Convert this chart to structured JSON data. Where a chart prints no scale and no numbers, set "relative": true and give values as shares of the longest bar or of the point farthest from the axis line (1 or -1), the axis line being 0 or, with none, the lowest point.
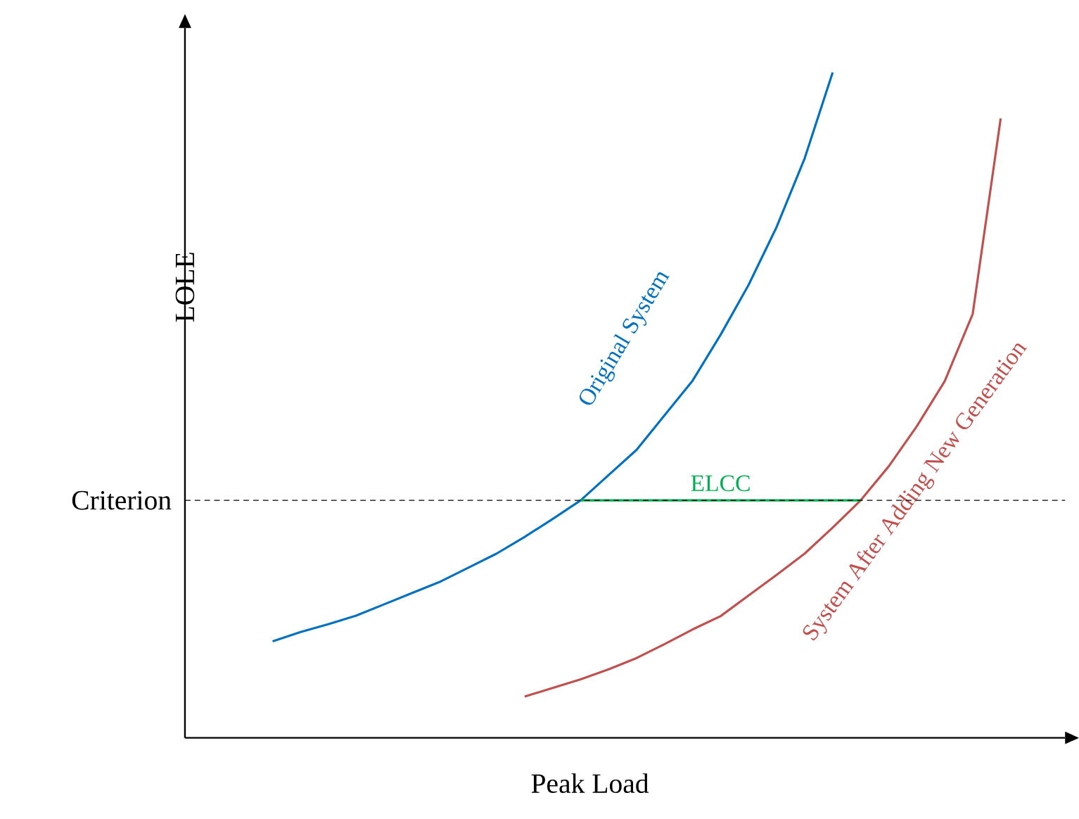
{
  "chart_data": {
    "type": "line",
    "relative": true,
    "xlabel": "Peak Load",
    "ylabel": "LOLE",
    "categories": [
      null,
      null,
      null,
      null,
      null,
      null,
      null,
      null,
      null,
      null,
      null,
      null,
      null,
      null,
      null,
      null,
      null,
      null,
      null,
      null,
      null,
      null,
      null,
      null,
      null,
      null,
      null,
      null,
      null,
      null,
      null
    ],
    "series": [
      {
        "name": "Original System",
        "color": "#0070c0",
        "values": [
          null,
          null,
          null,
          0.145,
          0.159,
          0.171,
          0.184,
          0.201,
          0.218,
          0.235,
          0.256,
          0.277,
          0.302,
          0.329,
          0.357,
          0.395,
          0.433,
          0.485,
          0.537,
          0.606,
          0.681,
          0.768,
          0.871,
          1,
          null,
          null,
          null,
          null,
          null,
          null,
          null
        ]
      },
      {
        "name": "System After Adding New Generation",
        "color": "#c0504d",
        "values": [
          null,
          null,
          null,
          null,
          null,
          null,
          null,
          null,
          null,
          null,
          null,
          null,
          0.062,
          0.075,
          0.088,
          0.103,
          0.12,
          0.141,
          0.163,
          0.183,
          0.214,
          0.245,
          0.277,
          0.316,
          0.357,
          0.408,
          0.468,
          0.536,
          0.637,
          0.931,
          null
        ]
      },
      {
        "name": "ELCC",
        "color": "#00b050",
        "values": [
          null,
          null,
          null,
          null,
          null,
          null,
          null,
          null,
          null,
          null,
          null,
          null,
          null,
          null,
          0.357,
          null,
          null,
          null,
          null,
          null,
          null,
          null,
          null,
          null,
          0.357,
          null,
          null,
          null,
          null,
          null,
          null
        ]
      }
    ],
    "ref_lines": [
      {
        "axis": "y",
        "value": 0.357,
        "label": "Criterion",
        "color": "#000000",
        "line_style": "dashed"
      }
    ]
  }
}
